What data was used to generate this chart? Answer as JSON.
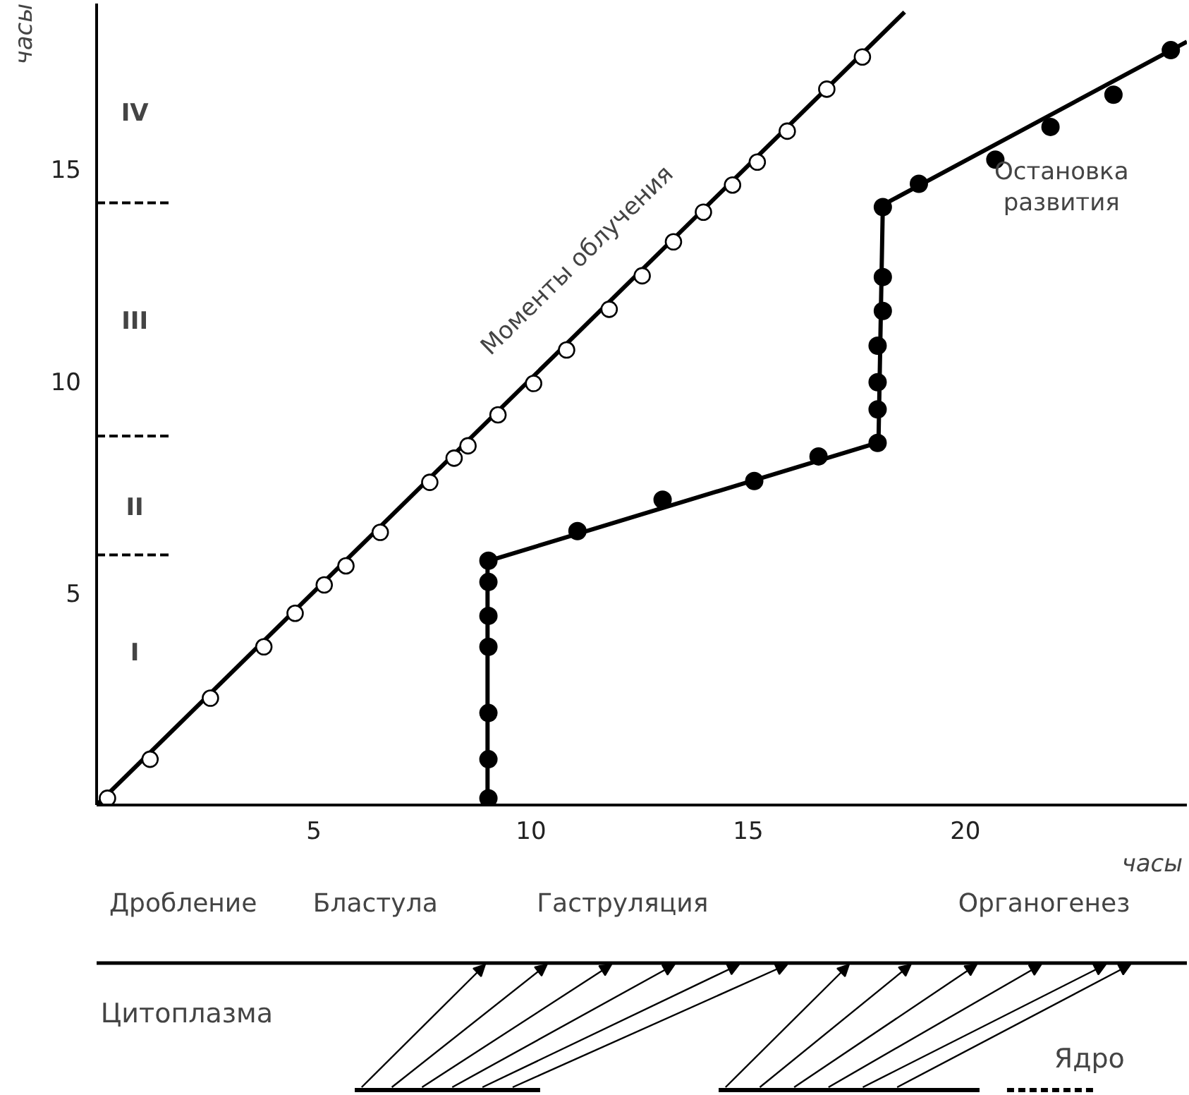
{
  "chart_data": {
    "type": "line",
    "ylabel": "часы",
    "xlabel": "часы",
    "xlim": [
      0,
      25.1
    ],
    "ylim": [
      0,
      18.9
    ],
    "xticks": [
      5,
      10,
      15,
      20
    ],
    "yticks": [
      5,
      10,
      15
    ],
    "grid": false,
    "series": [
      {
        "color": "#000000",
        "marker": "none",
        "x": [
          0,
          18.6
        ],
        "values": [
          0,
          18.7
        ]
      },
      {
        "color": "#000000",
        "marker": "none",
        "line_style": "dashed",
        "x": [
          0,
          1.7
        ],
        "values": [
          5.9,
          5.9
        ]
      },
      {
        "color": "#000000",
        "marker": "none",
        "line_style": "dashed",
        "x": [
          0,
          1.7
        ],
        "values": [
          8.7,
          8.7
        ]
      },
      {
        "color": "#000000",
        "marker": "none",
        "line_style": "dashed",
        "x": [
          0,
          1.7
        ],
        "values": [
          14.2,
          14.2
        ]
      },
      {
        "type": "scatter",
        "color": "#000000",
        "marker": "circle_open",
        "x": [
          0.25,
          1.23,
          2.62,
          3.85,
          4.57,
          5.24,
          5.74,
          6.53,
          7.67,
          8.23,
          8.55,
          9.24,
          10.06,
          10.82,
          11.8,
          12.56,
          13.28,
          13.97,
          14.64,
          15.21,
          15.9,
          16.81,
          17.63
        ],
        "values": [
          0.16,
          1.08,
          2.52,
          3.73,
          4.52,
          5.19,
          5.64,
          6.43,
          7.61,
          8.18,
          8.47,
          9.2,
          9.94,
          10.73,
          11.69,
          12.48,
          13.28,
          13.98,
          14.62,
          15.16,
          15.89,
          16.88,
          17.64
        ]
      },
      {
        "type": "line",
        "color": "#000000",
        "marker": "none",
        "x": [
          9.0,
          9.0,
          18.0,
          18.1,
          25.1
        ],
        "values": [
          0,
          5.75,
          8.55,
          14.15,
          18.0
        ]
      },
      {
        "type": "scatter",
        "color": "#000000",
        "marker": "circle",
        "x": [
          9.02,
          9.02,
          9.02,
          9.02,
          9.02,
          9.02,
          9.02,
          11.07,
          13.03,
          15.14,
          16.62,
          17.98,
          17.98,
          17.98,
          17.98,
          18.1,
          18.1,
          18.1,
          18.93,
          20.69,
          21.96,
          23.41,
          24.73
        ],
        "values": [
          0.16,
          1.08,
          2.17,
          3.73,
          4.46,
          5.26,
          5.76,
          6.46,
          7.2,
          7.64,
          8.22,
          8.54,
          9.33,
          9.97,
          10.83,
          11.65,
          12.45,
          14.1,
          14.65,
          15.22,
          15.99,
          16.75,
          17.8
        ]
      }
    ],
    "annotations": [
      "I",
      "II",
      "III",
      "IV",
      "Моменты облучения",
      "Остановка\nразвития",
      "Дробление",
      "Бластула",
      "Гаструляция",
      "Органогенез",
      "Цитоплазма",
      "Ядро"
    ]
  }
}
